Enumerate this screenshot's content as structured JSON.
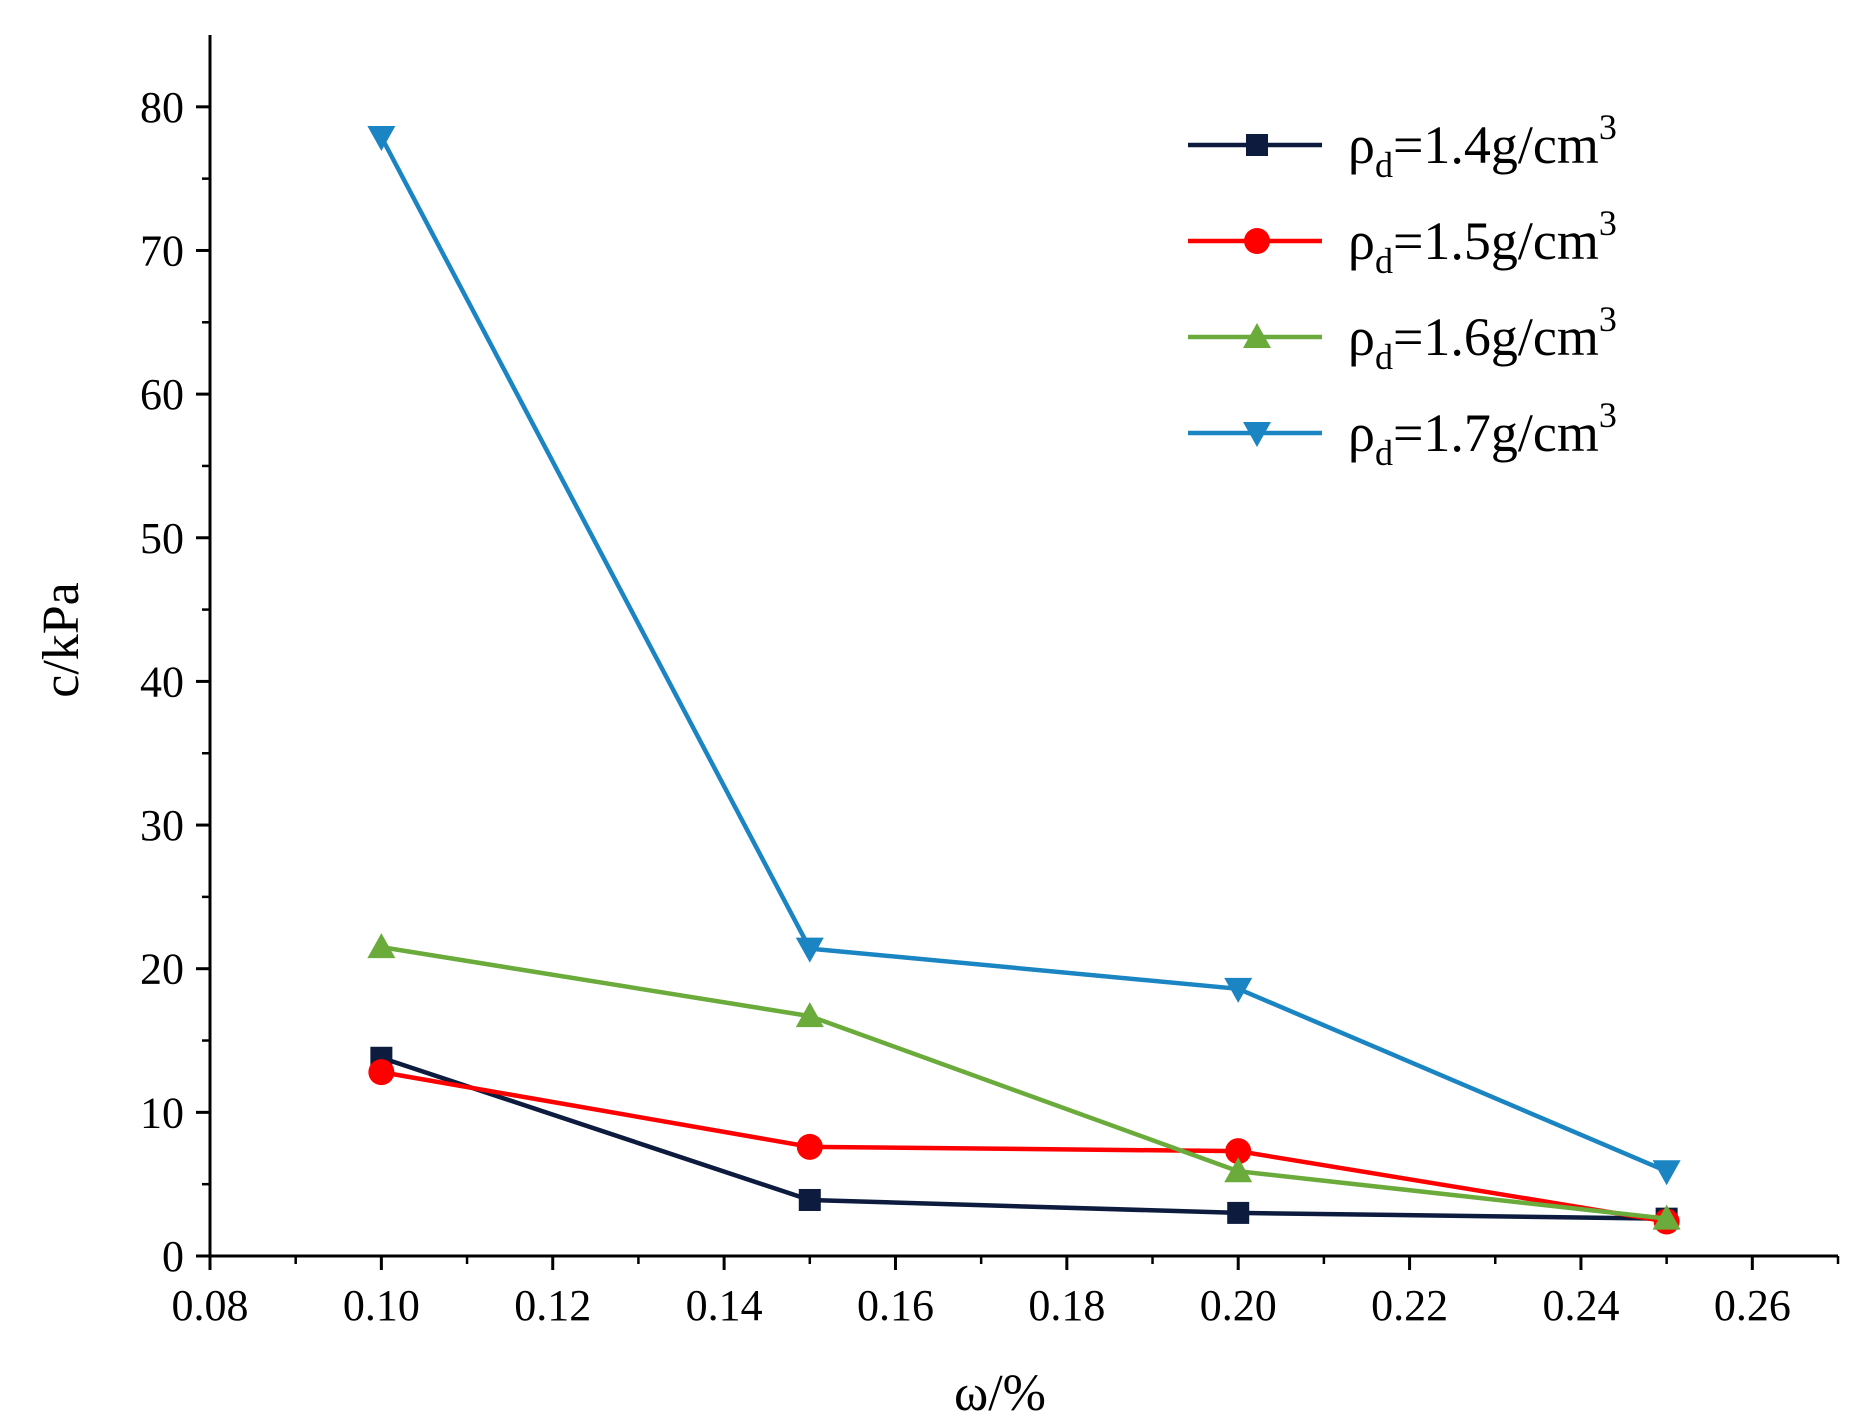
{
  "chart_data": {
    "type": "line",
    "title": "",
    "xlabel": "ω/%",
    "ylabel": "c/kPa",
    "xlim": [
      0.08,
      0.27
    ],
    "ylim": [
      0,
      85
    ],
    "x_ticks": [
      0.08,
      0.1,
      0.12,
      0.14,
      0.16,
      0.18,
      0.2,
      0.22,
      0.24,
      0.26
    ],
    "x_tick_labels": [
      "0.08",
      "0.10",
      "0.12",
      "0.14",
      "0.16",
      "0.18",
      "0.20",
      "0.22",
      "0.24",
      "0.26"
    ],
    "y_ticks": [
      0,
      10,
      20,
      30,
      40,
      50,
      60,
      70,
      80
    ],
    "y_tick_labels": [
      "0",
      "10",
      "20",
      "30",
      "40",
      "50",
      "60",
      "70",
      "80"
    ],
    "grid": false,
    "legend_position": "top-right",
    "x": [
      0.1,
      0.15,
      0.2,
      0.25
    ],
    "series": [
      {
        "name": "ρd=1.4g/cm3",
        "name_base": "ρ",
        "name_sub": "d",
        "name_main": "=1.4g/cm",
        "name_sup": "3",
        "marker": "square",
        "color": "#0d1b3e",
        "values": [
          13.8,
          3.9,
          3.0,
          2.6
        ]
      },
      {
        "name": "ρd=1.5g/cm3",
        "name_base": "ρ",
        "name_sub": "d",
        "name_main": "=1.5g/cm",
        "name_sup": "3",
        "marker": "circle",
        "color": "#ff0000",
        "values": [
          12.8,
          7.6,
          7.3,
          2.4
        ]
      },
      {
        "name": "ρd=1.6g/cm3",
        "name_base": "ρ",
        "name_sub": "d",
        "name_main": "=1.6g/cm",
        "name_sup": "3",
        "marker": "triangle-up",
        "color": "#6aab3c",
        "values": [
          21.5,
          16.7,
          5.9,
          2.6
        ]
      },
      {
        "name": "ρd=1.7g/cm3",
        "name_base": "ρ",
        "name_sub": "d",
        "name_main": "=1.7g/cm",
        "name_sup": "3",
        "marker": "triangle-down",
        "color": "#1a85c2",
        "values": [
          77.9,
          21.4,
          18.6,
          5.9
        ]
      }
    ]
  }
}
